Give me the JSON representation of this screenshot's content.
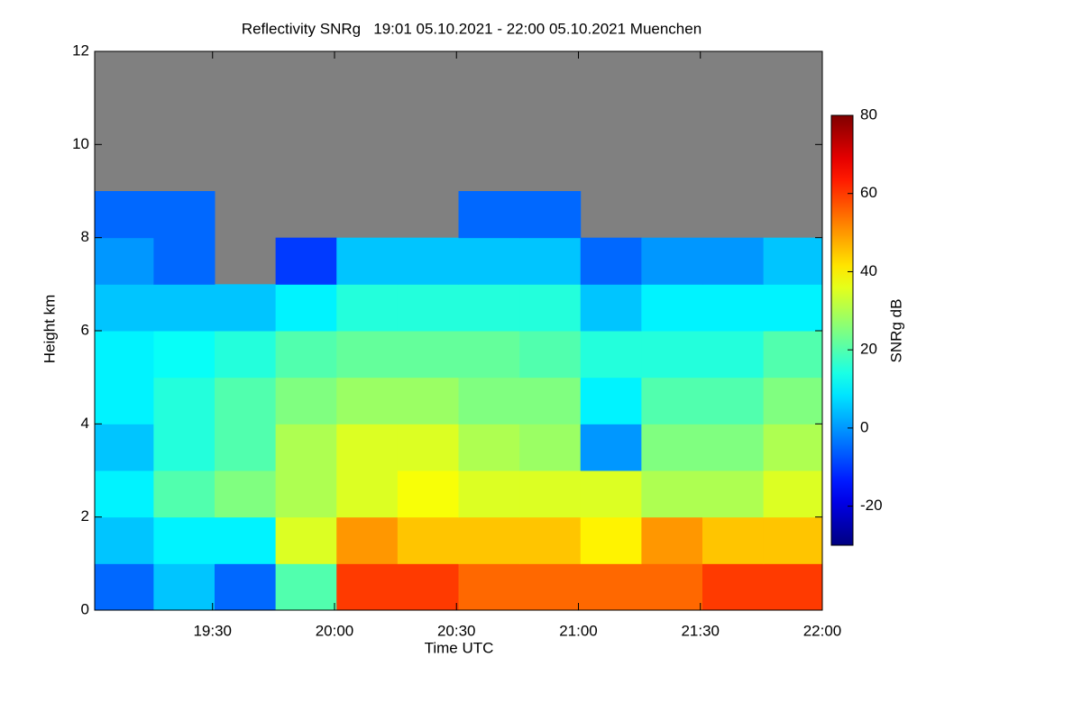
{
  "chart_data": {
    "type": "heatmap",
    "title": "Reflectivity SNRg   19:01 05.10.2021 - 22:00 05.10.2021 Muenchen",
    "xlabel": "Time UTC",
    "ylabel": "Height km",
    "colorbar_label": "SNRg dB",
    "colormap": "jet",
    "missing_color": "#808080",
    "xlim": [
      1,
      180
    ],
    "xticks": [
      {
        "value": 30,
        "label": "19:30"
      },
      {
        "value": 60,
        "label": "20:00"
      },
      {
        "value": 90,
        "label": "20:30"
      },
      {
        "value": 120,
        "label": "21:00"
      },
      {
        "value": 150,
        "label": "21:30"
      },
      {
        "value": 180,
        "label": "22:00"
      }
    ],
    "ylim": [
      0,
      12
    ],
    "yticks": [
      0,
      2,
      4,
      6,
      8,
      10,
      12
    ],
    "zlim": [
      -30,
      80
    ],
    "zticks": [
      -20,
      0,
      20,
      40,
      60,
      80
    ],
    "x": [
      8,
      23,
      38,
      53,
      68,
      83,
      98,
      113,
      128,
      143,
      158,
      173
    ],
    "y": [
      0.5,
      1.5,
      2.5,
      3.5,
      4.5,
      5.5,
      6.5,
      7.5,
      8.5,
      9.5,
      10.5,
      11.5
    ],
    "z": [
      [
        -5,
        5,
        -5,
        20,
        60,
        60,
        55,
        55,
        55,
        55,
        60,
        60
      ],
      [
        5,
        10,
        10,
        35,
        50,
        45,
        45,
        45,
        40,
        50,
        45,
        45
      ],
      [
        10,
        20,
        25,
        30,
        35,
        38,
        35,
        35,
        35,
        30,
        30,
        35
      ],
      [
        5,
        15,
        20,
        30,
        35,
        35,
        30,
        28,
        0,
        25,
        25,
        30
      ],
      [
        10,
        15,
        20,
        25,
        28,
        28,
        25,
        25,
        10,
        20,
        20,
        25
      ],
      [
        10,
        12,
        15,
        20,
        22,
        22,
        22,
        20,
        15,
        15,
        15,
        20
      ],
      [
        5,
        5,
        5,
        10,
        15,
        15,
        15,
        15,
        5,
        10,
        10,
        10
      ],
      [
        0,
        -5,
        null,
        -10,
        5,
        5,
        5,
        5,
        -5,
        0,
        0,
        5
      ],
      [
        -5,
        -5,
        null,
        null,
        null,
        null,
        -5,
        -5,
        null,
        null,
        null,
        null
      ],
      [
        null,
        null,
        null,
        null,
        null,
        null,
        null,
        null,
        null,
        null,
        null,
        null
      ],
      [
        null,
        null,
        null,
        null,
        null,
        null,
        null,
        null,
        null,
        null,
        null,
        null
      ],
      [
        null,
        null,
        null,
        null,
        null,
        null,
        null,
        null,
        null,
        null,
        null,
        null
      ]
    ]
  }
}
